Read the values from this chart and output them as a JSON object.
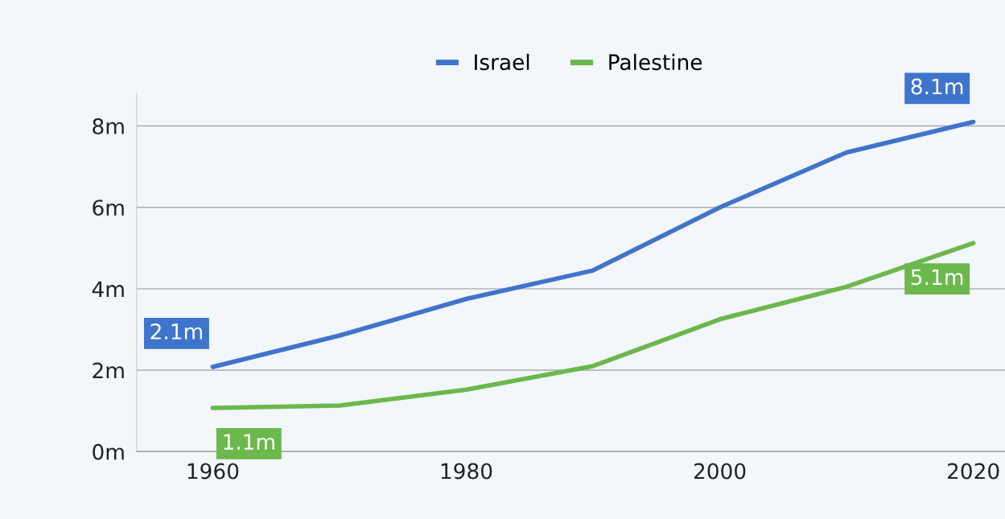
{
  "chart_data": {
    "type": "line",
    "x": [
      1960,
      1970,
      1980,
      1990,
      2000,
      2010,
      2020
    ],
    "series": [
      {
        "name": "Israel",
        "color": "#3f74cc",
        "values": [
          2.08,
          2.85,
          3.75,
          4.45,
          6.0,
          7.35,
          8.1
        ],
        "value_labels": [
          "2.1m",
          null,
          null,
          null,
          null,
          null,
          "8.1m"
        ]
      },
      {
        "name": "Palestine",
        "color": "#6bb84c",
        "values": [
          1.07,
          1.13,
          1.52,
          2.1,
          3.25,
          4.05,
          5.12
        ],
        "value_labels": [
          "1.1m",
          null,
          null,
          null,
          null,
          null,
          "5.1m"
        ]
      }
    ],
    "xlim": [
      1954,
      2022.5
    ],
    "xticks": [
      1960,
      1980,
      2000,
      2020
    ],
    "ylim": [
      0,
      8.8
    ],
    "yticks": [
      {
        "value": 0,
        "label": "0m"
      },
      {
        "value": 2,
        "label": "2m"
      },
      {
        "value": 4,
        "label": "4m"
      },
      {
        "value": 6,
        "label": "6m"
      },
      {
        "value": 8,
        "label": "8m"
      }
    ],
    "grid": "y",
    "legend": "top",
    "marker": "none",
    "line_style": "solid"
  }
}
